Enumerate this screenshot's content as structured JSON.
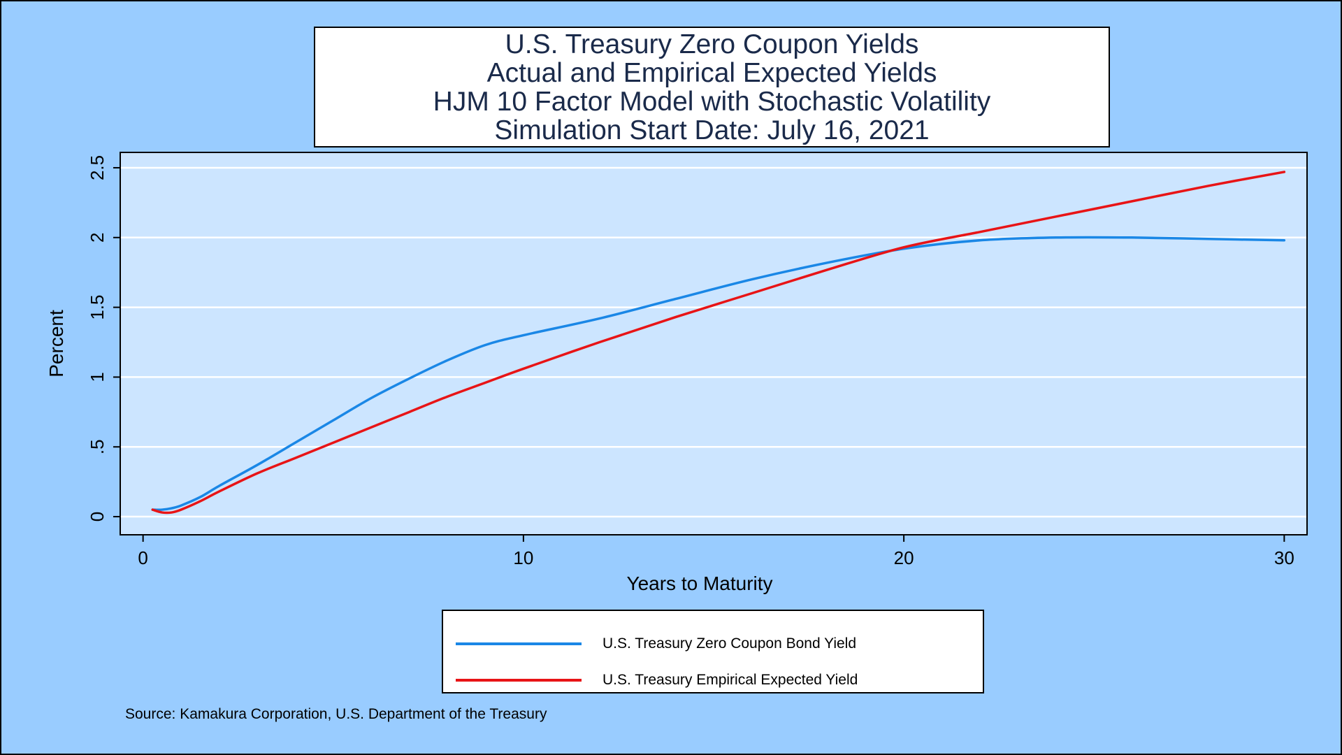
{
  "title_lines": [
    "U.S. Treasury Zero Coupon Yields",
    "Actual and Empirical Expected Yields",
    "HJM 10 Factor Model with Stochastic Volatility",
    "Simulation Start Date: July 16, 2021"
  ],
  "source": "Source: Kamakura Corporation, U.S. Department of the Treasury",
  "colors": {
    "page_bg": "#99ccff",
    "plot_bg": "#cce5ff",
    "gridline": "#ffffff",
    "actual": "#1a87e6",
    "expected": "#e81416"
  },
  "chart_data": {
    "type": "line",
    "xlabel": "Years to Maturity",
    "ylabel": "Percent",
    "xlim": [
      -0.6,
      30.6
    ],
    "ylim": [
      -0.13,
      2.61
    ],
    "xticks": [
      0,
      10,
      20,
      30
    ],
    "xtick_labels": [
      "0",
      "10",
      "20",
      "30"
    ],
    "yticks": [
      0,
      0.5,
      1,
      1.5,
      2,
      2.5
    ],
    "ytick_labels": [
      "0",
      ".5",
      "1",
      "1.5",
      "2",
      "2.5"
    ],
    "grid": true,
    "legend_position": "bottom",
    "series": [
      {
        "name": "U.S. Treasury Zero Coupon Bond Yield",
        "color": "#1a87e6",
        "x": [
          0.25,
          0.5,
          0.75,
          1,
          1.5,
          2,
          3,
          4,
          5,
          6,
          7,
          8,
          9,
          10,
          12,
          14,
          16,
          18,
          20,
          22,
          24,
          26,
          28,
          30
        ],
        "y": [
          0.05,
          0.05,
          0.06,
          0.08,
          0.14,
          0.22,
          0.37,
          0.53,
          0.69,
          0.85,
          0.99,
          1.12,
          1.23,
          1.3,
          1.42,
          1.56,
          1.7,
          1.82,
          1.92,
          1.98,
          2.0,
          2.0,
          1.99,
          1.98
        ]
      },
      {
        "name": "U.S. Treasury Empirical Expected Yield",
        "color": "#e81416",
        "x": [
          0.25,
          0.5,
          0.75,
          1,
          1.5,
          2,
          3,
          4,
          5,
          6,
          7,
          8,
          9,
          10,
          12,
          14,
          16,
          18,
          20,
          22,
          24,
          26,
          28,
          30
        ],
        "y": [
          0.05,
          0.03,
          0.03,
          0.05,
          0.11,
          0.18,
          0.31,
          0.42,
          0.53,
          0.64,
          0.75,
          0.86,
          0.96,
          1.06,
          1.25,
          1.43,
          1.6,
          1.77,
          1.93,
          2.04,
          2.15,
          2.26,
          2.37,
          2.47
        ]
      }
    ]
  }
}
